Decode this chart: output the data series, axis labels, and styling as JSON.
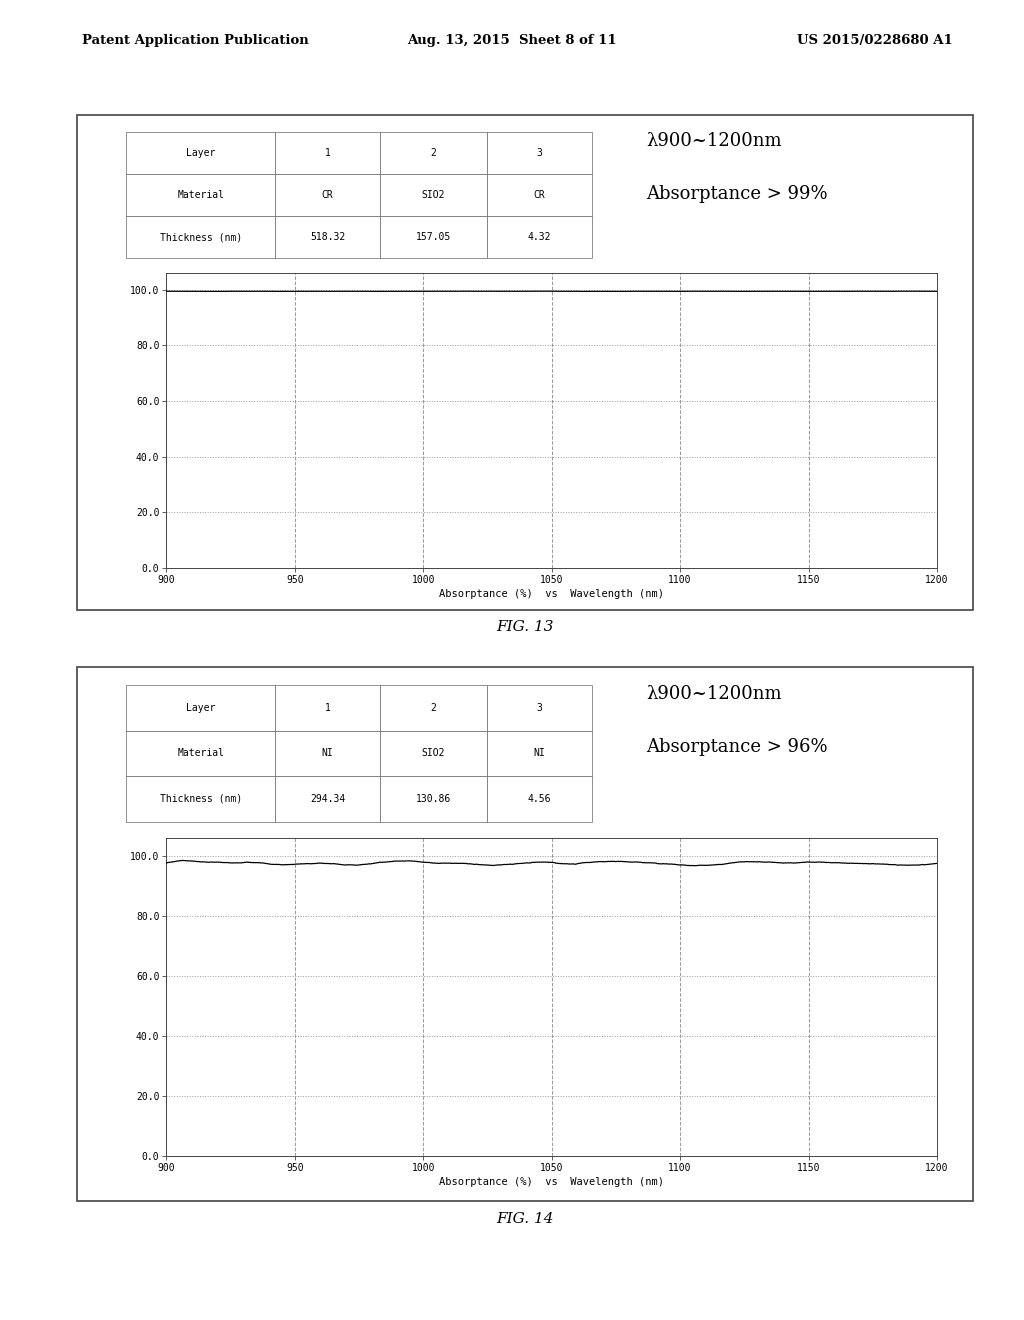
{
  "page_header_left": "Patent Application Publication",
  "page_header_mid": "Aug. 13, 2015  Sheet 8 of 11",
  "page_header_right": "US 2015/0228680 A1",
  "fig13_caption": "FIG. 13",
  "fig14_caption": "FIG. 14",
  "fig13": {
    "table": {
      "rows": [
        [
          "Layer",
          "1",
          "2",
          "3"
        ],
        [
          "Material",
          "CR",
          "SIO2",
          "CR"
        ],
        [
          "Thickness (nm)",
          "518.32",
          "157.05",
          "4.32"
        ]
      ]
    },
    "annotation_line1": "λ900~1200nm",
    "annotation_line2": "Absorptance > 99%",
    "xlabel": "Absorptance (%)  vs  Wavelength (nm)",
    "ytick_labels": [
      "0.0",
      "20.0",
      "40.0",
      "60.0",
      "80.0",
      "100.0"
    ],
    "ytick_vals": [
      0.0,
      20.0,
      40.0,
      60.0,
      80.0,
      100.0
    ],
    "xtick_labels": [
      "900",
      "950",
      "1000",
      "1050",
      "1100",
      "1150",
      "1200"
    ],
    "xtick_vals": [
      900,
      950,
      1000,
      1050,
      1100,
      1150,
      1200
    ],
    "xmin": 900,
    "xmax": 1200,
    "ymin": 0.0,
    "ymax": 106,
    "curve_base": 99.5,
    "is_cr": true
  },
  "fig14": {
    "table": {
      "rows": [
        [
          "Layer",
          "1",
          "2",
          "3"
        ],
        [
          "Material",
          "NI",
          "SIO2",
          "NI"
        ],
        [
          "Thickness (nm)",
          "294.34",
          "130.86",
          "4.56"
        ]
      ]
    },
    "annotation_line1": "λ900~1200nm",
    "annotation_line2": "Absorptance > 96%",
    "xlabel": "Absorptance (%)  vs  Wavelength (nm)",
    "ytick_labels": [
      "0.0",
      "20.0",
      "40.0",
      "60.0",
      "80.0",
      "100.0"
    ],
    "ytick_vals": [
      0.0,
      20.0,
      40.0,
      60.0,
      80.0,
      100.0
    ],
    "xtick_labels": [
      "900",
      "950",
      "1000",
      "1050",
      "1100",
      "1150",
      "1200"
    ],
    "xtick_vals": [
      900,
      950,
      1000,
      1050,
      1100,
      1150,
      1200
    ],
    "xmin": 900,
    "xmax": 1200,
    "ymin": 0.0,
    "ymax": 106,
    "curve_base": 97.5,
    "is_cr": false
  },
  "bg_color": "#ffffff",
  "panel_bg": "#ffffff",
  "panel_border": "#444444",
  "table_border": "#666666",
  "grid_color": "#999999",
  "axis_bg": "#ffffff",
  "curve_color": "#000000"
}
